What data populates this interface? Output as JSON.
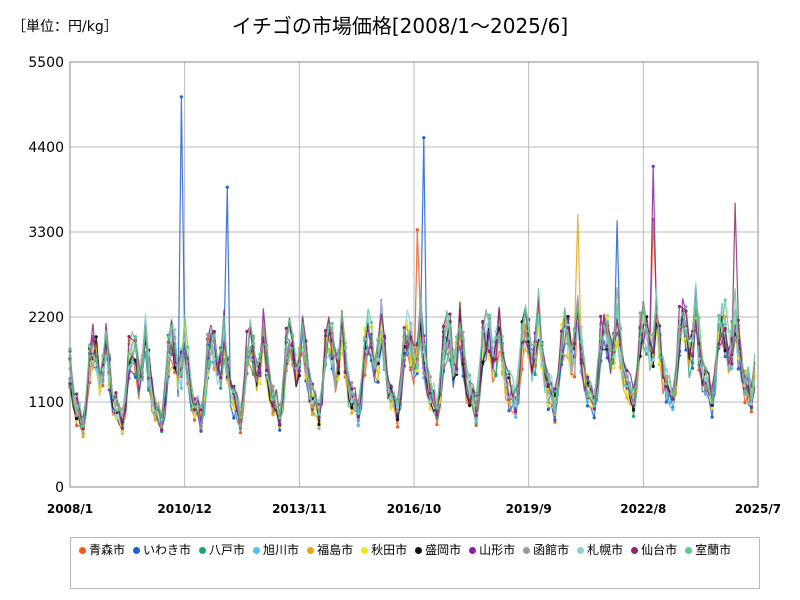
{
  "unit_label": "［単位：円/kg］",
  "title": "イチゴの市場価格[2008/1～2025/6]",
  "chart_data": {
    "type": "line",
    "title": "イチゴの市場価格[2008/1～2025/6]",
    "unit": "円/kg",
    "ylim": [
      0,
      5500
    ],
    "y_ticks": [
      "0",
      "1100",
      "2200",
      "3300",
      "4400",
      "5500"
    ],
    "x_ticks": [
      "2008/1",
      "2010/12",
      "2013/11",
      "2016/10",
      "2019/9",
      "2022/8",
      "2025/7"
    ],
    "xlim": [
      "2008-01",
      "2025-07"
    ],
    "grid": true,
    "legend_position": "bottom",
    "series": [
      {
        "name": "青森市",
        "color": "#f05a1e"
      },
      {
        "name": "いわき市",
        "color": "#1f5fd6"
      },
      {
        "name": "八戸市",
        "color": "#1aa37a"
      },
      {
        "name": "旭川市",
        "color": "#5bbcf0"
      },
      {
        "name": "福島市",
        "color": "#e8a51a"
      },
      {
        "name": "秋田市",
        "color": "#f2e61a"
      },
      {
        "name": "盛岡市",
        "color": "#111111"
      },
      {
        "name": "山形市",
        "color": "#8a1fa8"
      },
      {
        "name": "函館市",
        "color": "#9a9a9a"
      },
      {
        "name": "札幌市",
        "color": "#8ccfd6"
      },
      {
        "name": "仙台市",
        "color": "#8a2a6e"
      },
      {
        "name": "室蘭市",
        "color": "#5ec98c"
      }
    ],
    "peaks": [
      {
        "series": "いわき市",
        "x": "2010-11",
        "y": 5050
      },
      {
        "series": "いわき市",
        "x": "2012-01",
        "y": 3880
      },
      {
        "series": "いわき市",
        "x": "2017-01",
        "y": 4520
      },
      {
        "series": "山形市",
        "x": "2022-11",
        "y": 4150
      },
      {
        "series": "仙台市",
        "x": "2024-12",
        "y": 3680
      },
      {
        "series": "いわき市",
        "x": "2021-12",
        "y": 3450
      },
      {
        "series": "福島市",
        "x": "2020-12",
        "y": 3530
      },
      {
        "series": "青森市",
        "x": "2016-11",
        "y": 3330
      },
      {
        "series": "青森市",
        "x": "2022-11",
        "y": 3460
      }
    ]
  }
}
